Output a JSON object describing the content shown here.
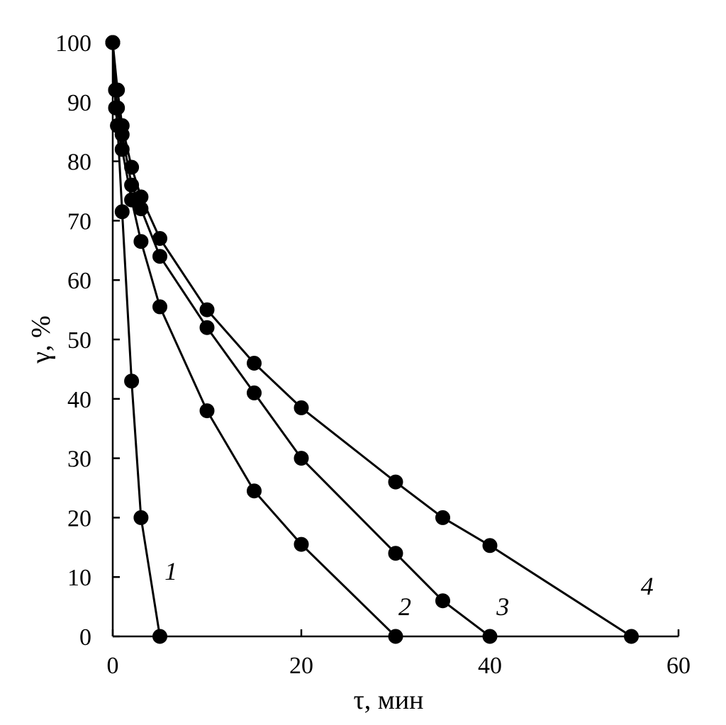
{
  "chart_data": {
    "type": "line",
    "xlabel": "τ, мин",
    "ylabel": "γ, %",
    "xlim": [
      0,
      60
    ],
    "ylim": [
      0,
      100
    ],
    "x_ticks": [
      0,
      20,
      40,
      60
    ],
    "y_ticks": [
      0,
      10,
      20,
      30,
      40,
      50,
      60,
      70,
      80,
      90,
      100
    ],
    "grid": false,
    "legend": "none",
    "marker": "filled-circle",
    "line_color": "#000000",
    "series": [
      {
        "name": "1",
        "label_at": [
          5.5,
          11
        ],
        "x": [
          0,
          0.3,
          0.5,
          1,
          2,
          3,
          5
        ],
        "y": [
          100,
          92,
          86,
          71.5,
          43,
          20,
          0
        ]
      },
      {
        "name": "2",
        "label_at": [
          30.3,
          5
        ],
        "x": [
          0,
          0.3,
          0.5,
          1,
          2,
          3,
          5,
          10,
          15,
          20,
          30
        ],
        "y": [
          100,
          89,
          86,
          82,
          73.5,
          66.5,
          55.5,
          38,
          24.5,
          15.5,
          0
        ]
      },
      {
        "name": "3",
        "label_at": [
          40.7,
          5
        ],
        "x": [
          0,
          0.3,
          0.5,
          1,
          2,
          3,
          5,
          10,
          15,
          20,
          30,
          35,
          40
        ],
        "y": [
          100,
          92,
          89,
          84.5,
          76,
          72,
          64,
          52,
          41,
          30,
          14,
          6,
          0
        ]
      },
      {
        "name": "4",
        "label_at": [
          56,
          8.5
        ],
        "x": [
          0,
          0.5,
          1,
          2,
          3,
          5,
          10,
          15,
          20,
          30,
          35,
          40,
          55
        ],
        "y": [
          100,
          92,
          86,
          79,
          74,
          67,
          55,
          46,
          38.5,
          26,
          20,
          15.3,
          0
        ]
      }
    ]
  }
}
